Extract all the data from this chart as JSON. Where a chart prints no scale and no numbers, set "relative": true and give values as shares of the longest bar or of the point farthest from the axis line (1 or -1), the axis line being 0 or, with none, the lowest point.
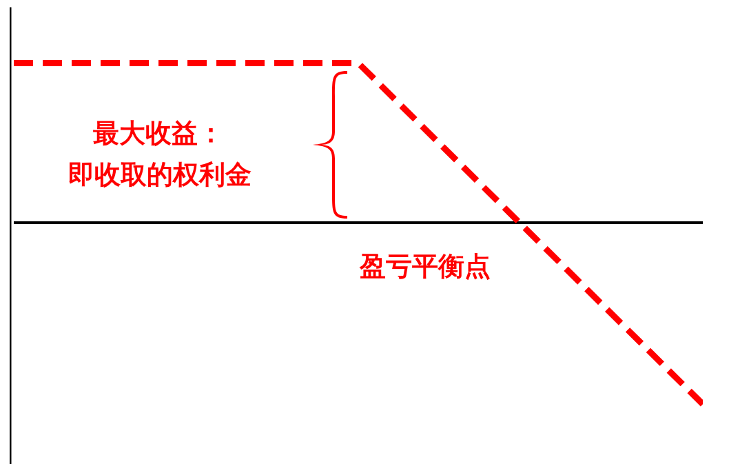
{
  "chart_data": {
    "type": "line",
    "categories": [
      null,
      null,
      null
    ],
    "values": [
      0.88,
      0.88,
      -1
    ],
    "color": "#ff0000",
    "relative": true,
    "line_style": "dashed",
    "annotations": [
      "最大收益：",
      "即收取的权利金",
      "盈亏平衡点"
    ]
  }
}
